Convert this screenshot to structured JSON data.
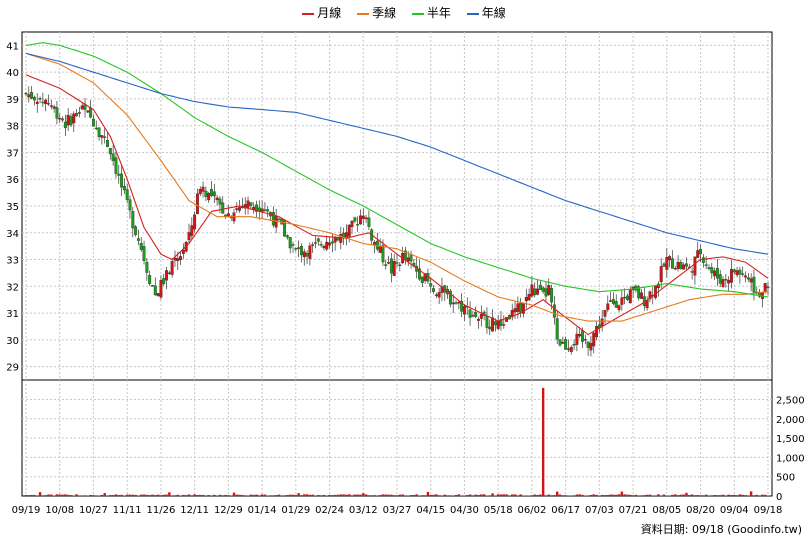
{
  "chart_data": {
    "type": "line",
    "title": "",
    "legend": [
      {
        "name": "月線",
        "color": "#d62020"
      },
      {
        "name": "季線",
        "color": "#e87a1c"
      },
      {
        "name": "半年",
        "color": "#26c626"
      },
      {
        "name": "年線",
        "color": "#2864c8"
      }
    ],
    "price_axis": {
      "ylim": [
        28.5,
        41.5
      ],
      "ticks": [
        29,
        30,
        31,
        32,
        33,
        34,
        35,
        36,
        37,
        38,
        39,
        40,
        41
      ]
    },
    "volume_axis": {
      "ylim": [
        0,
        2900
      ],
      "tick_labels": [
        "0",
        "500",
        "1,000",
        "1,500",
        "2,000",
        "2,500"
      ]
    },
    "x_tick_labels": [
      "09/19",
      "10/08",
      "10/27",
      "11/11",
      "11/26",
      "12/11",
      "12/29",
      "01/14",
      "01/29",
      "02/24",
      "03/12",
      "03/27",
      "04/15",
      "04/30",
      "05/18",
      "06/02",
      "06/17",
      "07/03",
      "07/21",
      "08/05",
      "08/20",
      "09/04",
      "09/18"
    ],
    "x_tick_index": [
      0,
      12,
      24,
      36,
      48,
      60,
      72,
      84,
      96,
      108,
      120,
      132,
      144,
      156,
      168,
      180,
      192,
      204,
      216,
      228,
      240,
      252,
      264
    ],
    "close_anchors": [
      [
        0,
        39.2
      ],
      [
        8,
        38.9
      ],
      [
        14,
        38.1
      ],
      [
        20,
        38.6
      ],
      [
        24,
        38.2
      ],
      [
        30,
        37.1
      ],
      [
        36,
        35.0
      ],
      [
        40,
        33.8
      ],
      [
        44,
        32.3
      ],
      [
        46,
        31.7
      ],
      [
        50,
        32.4
      ],
      [
        54,
        33.0
      ],
      [
        58,
        33.8
      ],
      [
        62,
        35.8
      ],
      [
        66,
        35.3
      ],
      [
        72,
        34.7
      ],
      [
        78,
        35.1
      ],
      [
        84,
        35.0
      ],
      [
        90,
        34.3
      ],
      [
        96,
        33.3
      ],
      [
        102,
        33.4
      ],
      [
        108,
        33.8
      ],
      [
        114,
        33.9
      ],
      [
        120,
        34.8
      ],
      [
        124,
        33.6
      ],
      [
        130,
        32.6
      ],
      [
        134,
        33.1
      ],
      [
        140,
        32.5
      ],
      [
        144,
        32.0
      ],
      [
        150,
        31.6
      ],
      [
        156,
        31.2
      ],
      [
        160,
        30.9
      ],
      [
        164,
        30.7
      ],
      [
        168,
        30.5
      ],
      [
        172,
        30.9
      ],
      [
        176,
        31.2
      ],
      [
        180,
        31.9
      ],
      [
        184,
        31.6
      ],
      [
        186,
        31.9
      ],
      [
        189,
        30.0
      ],
      [
        192,
        29.8
      ],
      [
        196,
        30.0
      ],
      [
        200,
        29.9
      ],
      [
        204,
        30.6
      ],
      [
        208,
        31.4
      ],
      [
        212,
        31.5
      ],
      [
        216,
        31.8
      ],
      [
        220,
        31.5
      ],
      [
        224,
        32.0
      ],
      [
        228,
        33.0
      ],
      [
        232,
        32.8
      ],
      [
        236,
        32.6
      ],
      [
        240,
        33.3
      ],
      [
        244,
        32.5
      ],
      [
        248,
        32.2
      ],
      [
        252,
        32.6
      ],
      [
        256,
        32.4
      ],
      [
        260,
        31.8
      ],
      [
        264,
        31.9
      ]
    ],
    "moving_averages": {
      "月線": [
        [
          0,
          39.9
        ],
        [
          12,
          39.4
        ],
        [
          24,
          38.6
        ],
        [
          30,
          37.6
        ],
        [
          36,
          36.0
        ],
        [
          42,
          34.2
        ],
        [
          48,
          33.2
        ],
        [
          52,
          33.0
        ],
        [
          58,
          33.6
        ],
        [
          66,
          34.8
        ],
        [
          76,
          35.0
        ],
        [
          90,
          34.6
        ],
        [
          102,
          33.9
        ],
        [
          114,
          33.8
        ],
        [
          122,
          34.0
        ],
        [
          132,
          33.2
        ],
        [
          144,
          32.3
        ],
        [
          156,
          31.3
        ],
        [
          168,
          30.7
        ],
        [
          176,
          31.0
        ],
        [
          184,
          31.5
        ],
        [
          190,
          31.0
        ],
        [
          200,
          30.2
        ],
        [
          210,
          30.8
        ],
        [
          220,
          31.4
        ],
        [
          230,
          32.2
        ],
        [
          240,
          33.0
        ],
        [
          248,
          33.1
        ],
        [
          256,
          32.9
        ],
        [
          264,
          32.3
        ]
      ],
      "季線": [
        [
          0,
          40.7
        ],
        [
          12,
          40.3
        ],
        [
          24,
          39.6
        ],
        [
          36,
          38.4
        ],
        [
          48,
          36.7
        ],
        [
          58,
          35.2
        ],
        [
          68,
          34.6
        ],
        [
          80,
          34.6
        ],
        [
          96,
          34.3
        ],
        [
          108,
          34.0
        ],
        [
          120,
          33.6
        ],
        [
          132,
          33.4
        ],
        [
          144,
          32.9
        ],
        [
          156,
          32.2
        ],
        [
          168,
          31.6
        ],
        [
          180,
          31.3
        ],
        [
          190,
          30.9
        ],
        [
          200,
          30.7
        ],
        [
          212,
          30.7
        ],
        [
          224,
          31.1
        ],
        [
          236,
          31.5
        ],
        [
          248,
          31.7
        ],
        [
          256,
          31.7
        ],
        [
          264,
          31.8
        ]
      ],
      "半年": [
        [
          0,
          41.0
        ],
        [
          6,
          41.1
        ],
        [
          12,
          41.0
        ],
        [
          24,
          40.6
        ],
        [
          36,
          40.0
        ],
        [
          48,
          39.2
        ],
        [
          60,
          38.3
        ],
        [
          72,
          37.6
        ],
        [
          84,
          37.0
        ],
        [
          96,
          36.3
        ],
        [
          108,
          35.6
        ],
        [
          120,
          35.0
        ],
        [
          132,
          34.3
        ],
        [
          144,
          33.6
        ],
        [
          156,
          33.1
        ],
        [
          168,
          32.7
        ],
        [
          180,
          32.3
        ],
        [
          192,
          32.0
        ],
        [
          204,
          31.8
        ],
        [
          216,
          31.9
        ],
        [
          228,
          32.1
        ],
        [
          240,
          31.9
        ],
        [
          252,
          31.8
        ],
        [
          264,
          31.6
        ]
      ],
      "年線": [
        [
          0,
          40.7
        ],
        [
          12,
          40.4
        ],
        [
          24,
          40.0
        ],
        [
          36,
          39.6
        ],
        [
          48,
          39.2
        ],
        [
          60,
          38.9
        ],
        [
          72,
          38.7
        ],
        [
          84,
          38.6
        ],
        [
          96,
          38.5
        ],
        [
          108,
          38.2
        ],
        [
          120,
          37.9
        ],
        [
          132,
          37.6
        ],
        [
          144,
          37.2
        ],
        [
          156,
          36.7
        ],
        [
          168,
          36.2
        ],
        [
          180,
          35.7
        ],
        [
          192,
          35.2
        ],
        [
          204,
          34.8
        ],
        [
          216,
          34.4
        ],
        [
          228,
          34.0
        ],
        [
          240,
          33.7
        ],
        [
          252,
          33.4
        ],
        [
          264,
          33.2
        ]
      ]
    },
    "volume_spike": {
      "index": 184,
      "value": 2800
    },
    "grid": true
  },
  "footer": {
    "source": "資料日期: 09/18  (Goodinfo.tw)"
  }
}
